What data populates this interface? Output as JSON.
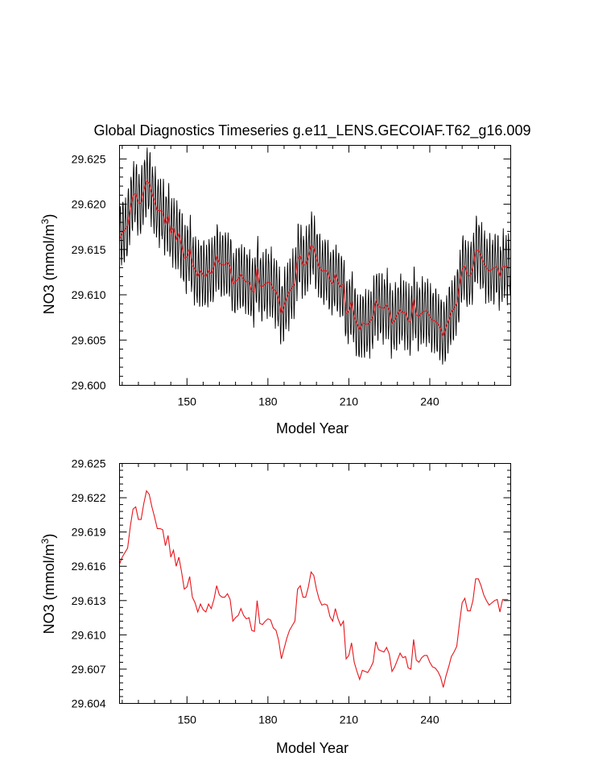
{
  "title": "Global Diagnostics Timeseries g.e11_LENS.GECOIAF.T62_g16.009",
  "colors": {
    "monthly": "#000000",
    "annual": "#e8151b",
    "axis": "#000000"
  },
  "chart_data": [
    {
      "type": "line",
      "name": "top-panel",
      "xlabel": "Model Year",
      "ylabel_main": "NO3 (mmol/m",
      "ylabel_sup": "3",
      "ylabel_close": ")",
      "xlim": [
        125,
        270
      ],
      "ylim": [
        29.6,
        29.6265
      ],
      "xticks": [
        150,
        180,
        210,
        240
      ],
      "xtick_labels": [
        "150",
        "180",
        "210",
        "240"
      ],
      "yticks": [
        29.6,
        29.605,
        29.61,
        29.615,
        29.62,
        29.625
      ],
      "ytick_labels": [
        "29.600",
        "29.605",
        "29.610",
        "29.615",
        "29.620",
        "29.625"
      ],
      "series": [
        {
          "name": "monthly",
          "amplitude": 0.0038,
          "color": "#000000"
        },
        {
          "name": "annual",
          "color": "#e8151b"
        }
      ]
    },
    {
      "type": "line",
      "name": "bottom-panel",
      "xlabel": "Model Year",
      "ylabel_main": "NO3 (mmol/m",
      "ylabel_sup": "3",
      "ylabel_close": ")",
      "xlim": [
        125,
        270
      ],
      "ylim": [
        29.604,
        29.625
      ],
      "xticks": [
        150,
        180,
        210,
        240
      ],
      "xtick_labels": [
        "150",
        "180",
        "210",
        "240"
      ],
      "yticks": [
        29.604,
        29.607,
        29.61,
        29.613,
        29.616,
        29.619,
        29.622,
        29.625
      ],
      "ytick_labels": [
        "29.604",
        "29.607",
        "29.610",
        "29.613",
        "29.616",
        "29.619",
        "29.622",
        "29.625"
      ],
      "series": [
        {
          "name": "annual",
          "color": "#e8151b"
        }
      ]
    }
  ],
  "annual_series": {
    "x": [
      125,
      126,
      127,
      128,
      129,
      130,
      131,
      132,
      133,
      134,
      135,
      136,
      137,
      138,
      139,
      140,
      141,
      142,
      143,
      144,
      145,
      146,
      147,
      148,
      149,
      150,
      151,
      152,
      153,
      154,
      155,
      156,
      157,
      158,
      159,
      160,
      161,
      162,
      163,
      164,
      165,
      166,
      167,
      168,
      169,
      170,
      171,
      172,
      173,
      174,
      175,
      176,
      177,
      178,
      179,
      180,
      181,
      182,
      183,
      184,
      185,
      186,
      187,
      188,
      189,
      190,
      191,
      192,
      193,
      194,
      195,
      196,
      197,
      198,
      199,
      200,
      201,
      202,
      203,
      204,
      205,
      206,
      207,
      208,
      209,
      210,
      211,
      212,
      213,
      214,
      215,
      216,
      217,
      218,
      219,
      220,
      221,
      222,
      223,
      224,
      225,
      226,
      227,
      228,
      229,
      230,
      231,
      232,
      233,
      234,
      235,
      236,
      237,
      238,
      239,
      240,
      241,
      242,
      243,
      244,
      245,
      246,
      247,
      248,
      249,
      250,
      251,
      252,
      253,
      254,
      255,
      256,
      257,
      258,
      259,
      260,
      261,
      262,
      263,
      264,
      265,
      266,
      267,
      268,
      269
    ],
    "values": [
      29.6162,
      29.6168,
      29.6172,
      29.6176,
      29.6195,
      29.621,
      29.6212,
      29.6201,
      29.6201,
      29.6215,
      29.6226,
      29.6223,
      29.6212,
      29.6203,
      29.6193,
      29.6193,
      29.6192,
      29.6178,
      29.6187,
      29.6168,
      29.6174,
      29.616,
      29.6168,
      29.6155,
      29.614,
      29.6142,
      29.6151,
      29.6133,
      29.6128,
      29.612,
      29.6127,
      29.6122,
      29.612,
      29.6127,
      29.6123,
      29.6131,
      29.6143,
      29.6135,
      29.6133,
      29.6133,
      29.6136,
      29.6131,
      29.6112,
      29.6115,
      29.6117,
      29.6123,
      29.6117,
      29.6114,
      29.6115,
      29.6104,
      29.6103,
      29.613,
      29.611,
      29.6109,
      29.6112,
      29.6114,
      29.6113,
      29.6106,
      29.6104,
      29.6095,
      29.6079,
      29.6088,
      29.6097,
      29.6104,
      29.6108,
      29.6112,
      29.614,
      29.6143,
      29.6133,
      29.6133,
      29.6142,
      29.6155,
      29.6152,
      29.614,
      29.6131,
      29.6126,
      29.6127,
      29.6126,
      29.6116,
      29.6112,
      29.6123,
      29.6114,
      29.6108,
      29.6112,
      29.6079,
      29.6082,
      29.6093,
      29.6076,
      29.6068,
      29.6061,
      29.6069,
      29.6068,
      29.6067,
      29.6071,
      29.6076,
      29.6094,
      29.6087,
      29.6086,
      29.6085,
      29.6089,
      29.6083,
      29.6068,
      29.6072,
      29.6078,
      29.6084,
      29.608,
      29.6081,
      29.6071,
      29.607,
      29.6096,
      29.6078,
      29.6076,
      29.608,
      29.6082,
      29.6082,
      29.6076,
      29.6072,
      29.6071,
      29.6068,
      29.6063,
      29.6054,
      29.6064,
      29.6072,
      29.6081,
      29.6085,
      29.609,
      29.611,
      29.6128,
      29.6132,
      29.6121,
      29.6121,
      29.613,
      29.6149,
      29.6149,
      29.6143,
      29.6135,
      29.613,
      29.6126,
      29.6128,
      29.613,
      29.6131,
      29.612,
      29.6131,
      29.6131,
      29.6131
    ]
  }
}
